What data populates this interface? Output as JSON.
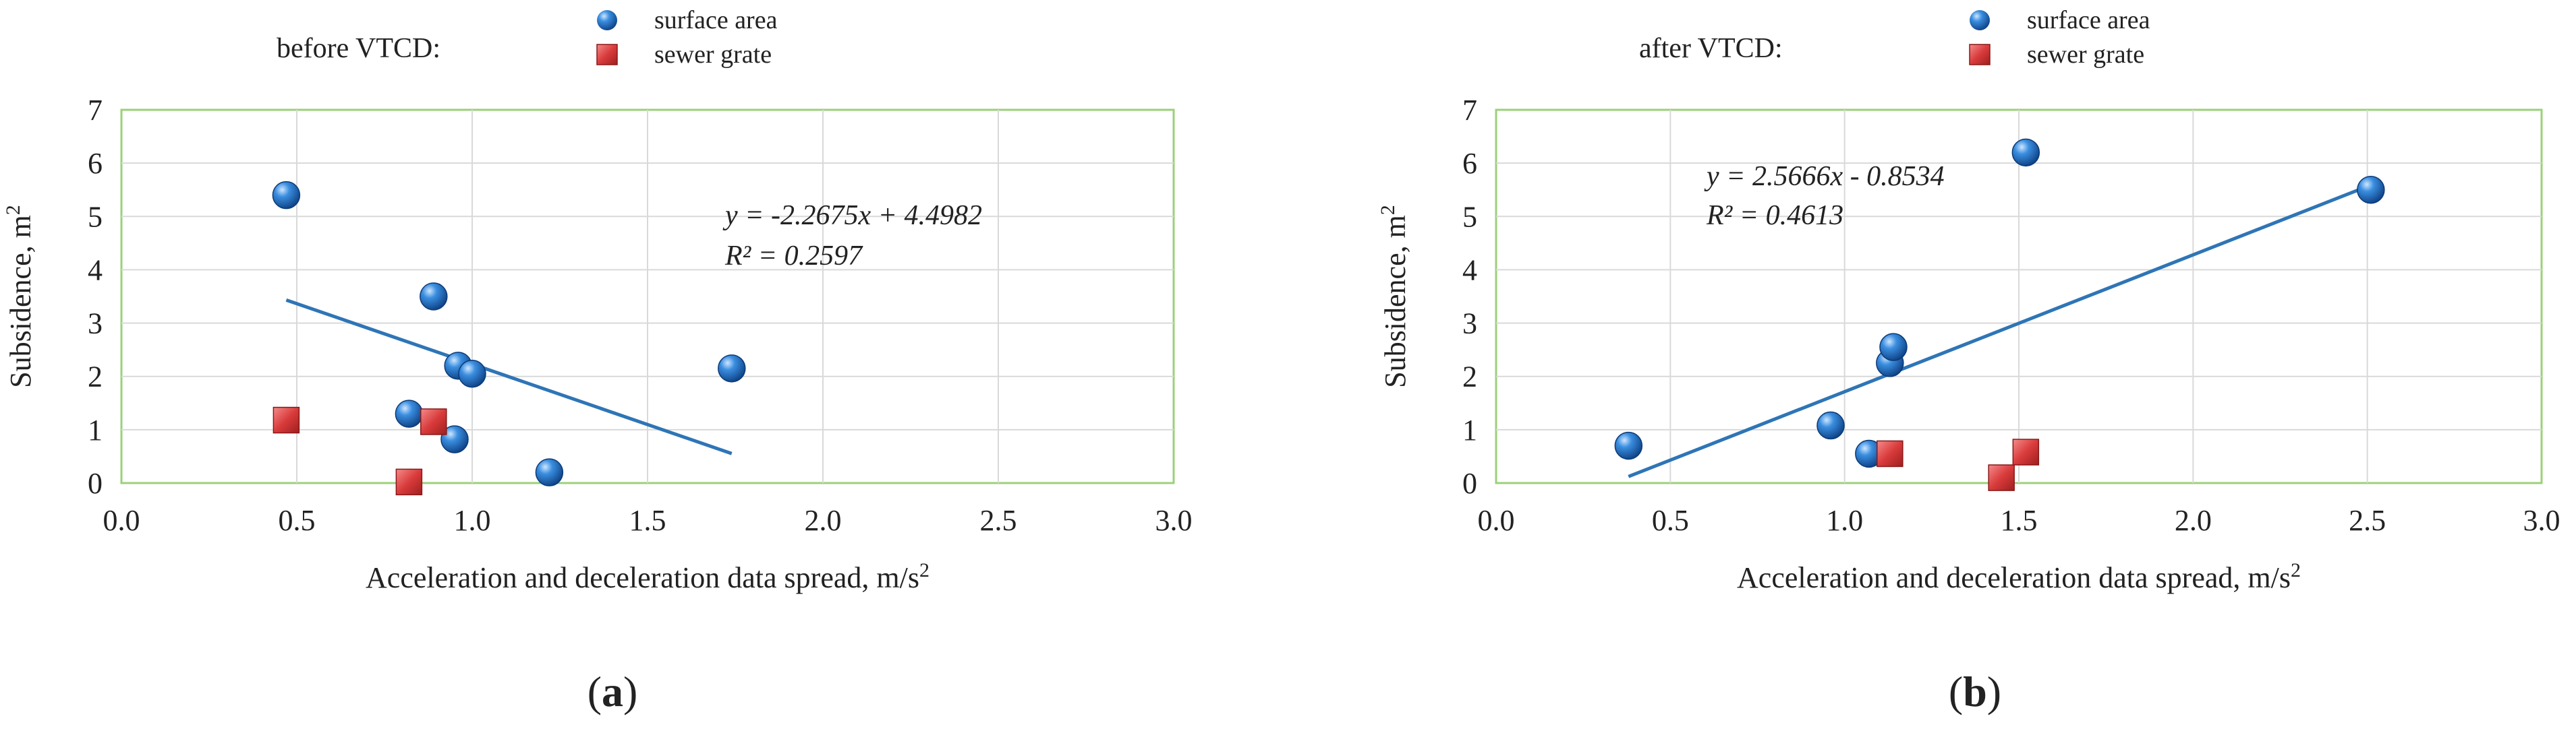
{
  "chart_data": [
    {
      "type": "scatter",
      "title": "before VTCD:",
      "panel_label": "(a)",
      "xlabel": "Acceleration and deceleration data spread, m/s",
      "xlabel_sup": "2",
      "ylabel": "Subsidence, m",
      "ylabel_sup": "2",
      "xlim": [
        0,
        3
      ],
      "ylim": [
        0,
        7
      ],
      "xticks": [
        "0.0",
        "0.5",
        "1.0",
        "1.5",
        "2.0",
        "2.5",
        "3.0"
      ],
      "yticks": [
        "0",
        "1",
        "2",
        "3",
        "4",
        "5",
        "6",
        "7"
      ],
      "grid": true,
      "legend_position": "top",
      "series": [
        {
          "name": "surface area",
          "marker": "sphere",
          "color": "#1f6fc0",
          "points": [
            [
              0.47,
              5.4
            ],
            [
              0.89,
              3.5
            ],
            [
              0.96,
              2.2
            ],
            [
              1.0,
              2.05
            ],
            [
              1.74,
              2.15
            ],
            [
              0.82,
              1.3
            ],
            [
              0.95,
              0.82
            ],
            [
              1.22,
              0.2
            ]
          ]
        },
        {
          "name": "sewer grate",
          "marker": "cube",
          "color": "#d93b3b",
          "points": [
            [
              0.47,
              1.18
            ],
            [
              0.89,
              1.15
            ],
            [
              0.82,
              0.02
            ]
          ]
        }
      ],
      "trendline": {
        "equation": "y = -2.2675x + 4.4982",
        "r2": "R² = 0.2597",
        "slope": -2.2675,
        "intercept": 4.4982,
        "x_range": [
          0.47,
          1.74
        ],
        "color": "#2e75b6"
      }
    },
    {
      "type": "scatter",
      "title": "after VTCD:",
      "panel_label": "(b)",
      "xlabel": "Acceleration and deceleration data spread, m/s",
      "xlabel_sup": "2",
      "ylabel": "Subsidence, m",
      "ylabel_sup": "2",
      "xlim": [
        0,
        3
      ],
      "ylim": [
        0,
        7
      ],
      "xticks": [
        "0.0",
        "0.5",
        "1.0",
        "1.5",
        "2.0",
        "2.5",
        "3.0"
      ],
      "yticks": [
        "0",
        "1",
        "2",
        "3",
        "4",
        "5",
        "6",
        "7"
      ],
      "grid": true,
      "legend_position": "top",
      "series": [
        {
          "name": "surface area",
          "marker": "sphere",
          "color": "#1f6fc0",
          "points": [
            [
              0.38,
              0.7
            ],
            [
              0.96,
              1.08
            ],
            [
              1.07,
              0.55
            ],
            [
              1.13,
              2.25
            ],
            [
              1.14,
              2.55
            ],
            [
              1.52,
              6.2
            ],
            [
              2.51,
              5.5
            ]
          ]
        },
        {
          "name": "sewer grate",
          "marker": "cube",
          "color": "#d93b3b",
          "points": [
            [
              1.13,
              0.55
            ],
            [
              1.45,
              0.1
            ],
            [
              1.52,
              0.58
            ]
          ]
        }
      ],
      "trendline": {
        "equation": "y = 2.5666x - 0.8534",
        "r2": "R² = 0.4613",
        "slope": 2.5666,
        "intercept": -0.8534,
        "x_range": [
          0.38,
          2.51
        ],
        "color": "#2e75b6"
      }
    }
  ]
}
